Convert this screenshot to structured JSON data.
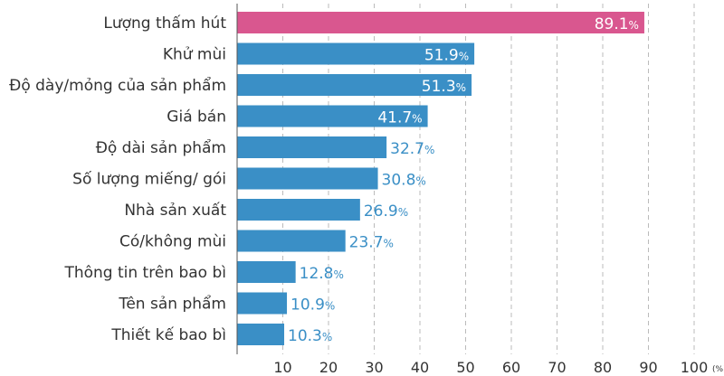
{
  "chart_data": {
    "type": "bar",
    "orientation": "horizontal",
    "categories": [
      "Lượng thấm hút",
      "Khử mùi",
      "Độ dày/mỏng của sản phẩm",
      "Giá bán",
      "Độ dài sản phẩm",
      "Số lượng miếng/ gói",
      "Nhà sản xuất",
      "Có/không mùi",
      "Thông tin trên bao bì",
      "Tên sản phẩm",
      "Thiết kế bao bì"
    ],
    "values": [
      89.1,
      51.9,
      51.3,
      41.7,
      32.7,
      30.8,
      26.9,
      23.7,
      12.8,
      10.9,
      10.3
    ],
    "value_suffix": "%",
    "xlim": [
      0,
      100
    ],
    "xticks": [
      10,
      20,
      30,
      40,
      50,
      60,
      70,
      80,
      90,
      100
    ],
    "x_unit_label": "(%)",
    "grid": "vertical dashed",
    "colors": {
      "highlight": "#d9578f",
      "bar": "#3a8fc6",
      "label_inside": "#ffffff",
      "label_outside": "#3a8fc6",
      "grid": "#bbbbbb",
      "axis": "#555555"
    },
    "highlight_index": 0
  }
}
